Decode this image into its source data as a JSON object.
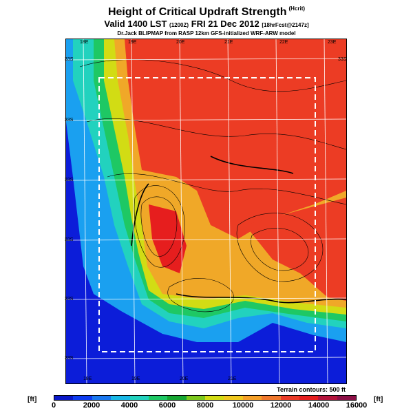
{
  "header": {
    "title": "Height of Critical Updraft Strength",
    "title_tag": "(Hcrit)",
    "subtitle_main": "Valid 1400 LST",
    "subtitle_code": "(1200Z)",
    "subtitle_date": "FRI 21 Dec 2012",
    "subtitle_forecast": "[18hrFcst@2147z]",
    "credit": "Dr.Jack BLIPMAP from RASP 12km GFS-initialized WRF-ARW model"
  },
  "map": {
    "lat_labels": [
      "33S",
      "33S",
      "33S",
      "33S",
      "33S",
      "33S",
      "33S"
    ],
    "lon_labels_top": [
      "18E",
      "19E",
      "20E",
      "21E",
      "22E",
      "23E"
    ],
    "lon_labels_bottom": [
      "18E",
      "19E",
      "20E",
      "21E"
    ],
    "terrain_note": "Terrain contours: 500 ft"
  },
  "colorbar": {
    "unit_left": "[ft]",
    "unit_right": "[ft]",
    "labels": [
      "0",
      "2000",
      "4000",
      "6000",
      "8000",
      "10000",
      "12000",
      "14000",
      "16000"
    ],
    "colors": [
      "#0a18c8",
      "#0e3cf0",
      "#1a78f0",
      "#19b8e6",
      "#22d2be",
      "#1ec864",
      "#16a632",
      "#7cc81e",
      "#d2dc14",
      "#f0c81e",
      "#f5a028",
      "#f0782d",
      "#eb3c28",
      "#e61e1e",
      "#b4143c",
      "#8c0f46"
    ]
  },
  "colors": {
    "ocean": "#0c1dd9",
    "low": "#1aa0f0",
    "mid": "#f0a828",
    "high": "#ec3c24"
  }
}
